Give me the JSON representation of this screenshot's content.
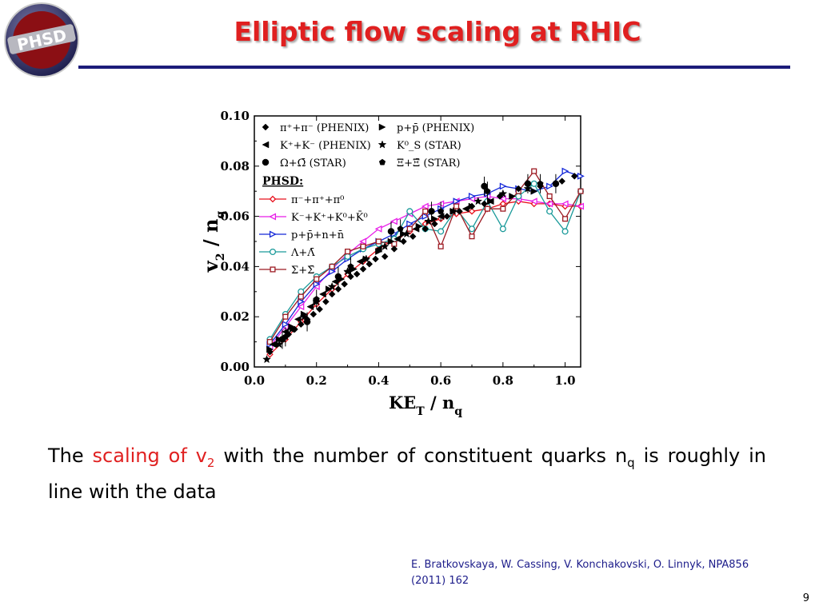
{
  "logo": {
    "text": "PHSD"
  },
  "title": "Elliptic flow scaling at RHIC",
  "body": {
    "p1": "The ",
    "highlight": "scaling of v",
    "sub2": "2",
    "p2": " with the number of constituent quarks n",
    "subq": "q",
    "p3": " is roughly in line with the data"
  },
  "reference": {
    "line1": "E. Bratkovskaya, W. Cassing, V. Konchakovski, O. Linnyk, NPA856",
    "line2": "(2011) 162"
  },
  "page_number": "9",
  "chart_data": {
    "type": "scatter",
    "xlabel": "KE_T / n_q",
    "ylabel": "v_2 / n_q",
    "xlim": [
      0.0,
      1.05
    ],
    "ylim": [
      0.0,
      0.1
    ],
    "x_ticks": [
      "0.0",
      "0.2",
      "0.4",
      "0.6",
      "0.8",
      "1.0"
    ],
    "y_ticks": [
      "0.00",
      "0.02",
      "0.04",
      "0.06",
      "0.08",
      "0.10"
    ],
    "legend_title_model": "PHSD:",
    "data_series": [
      {
        "name": "π⁺+π⁻ (PHENIX)",
        "marker": "diamond",
        "x": [
          0.05,
          0.07,
          0.09,
          0.11,
          0.13,
          0.15,
          0.17,
          0.19,
          0.21,
          0.23,
          0.25,
          0.27,
          0.29,
          0.31,
          0.33,
          0.35,
          0.37,
          0.39,
          0.42,
          0.45,
          0.48,
          0.51,
          0.55,
          0.58,
          0.62,
          0.66,
          0.7,
          0.74,
          0.79,
          0.85,
          0.92,
          0.99,
          1.03
        ],
        "y": [
          0.006,
          0.009,
          0.011,
          0.013,
          0.015,
          0.017,
          0.019,
          0.021,
          0.023,
          0.026,
          0.029,
          0.031,
          0.033,
          0.036,
          0.037,
          0.039,
          0.041,
          0.043,
          0.044,
          0.047,
          0.05,
          0.052,
          0.055,
          0.057,
          0.06,
          0.062,
          0.064,
          0.065,
          0.068,
          0.071,
          0.072,
          0.074,
          0.076
        ]
      },
      {
        "name": "K⁺+K⁻ (PHENIX)",
        "marker": "triangle-left",
        "x": [
          0.06,
          0.1,
          0.14,
          0.18,
          0.22,
          0.26,
          0.3,
          0.34,
          0.4,
          0.46,
          0.52,
          0.6,
          0.68,
          0.76
        ],
        "y": [
          0.009,
          0.014,
          0.019,
          0.024,
          0.029,
          0.034,
          0.038,
          0.042,
          0.047,
          0.051,
          0.055,
          0.06,
          0.063,
          0.066
        ]
      },
      {
        "name": "Ω+Ω̄ (STAR)",
        "marker": "circle",
        "x": [
          0.09,
          0.17,
          0.27,
          0.44,
          0.57,
          0.74,
          0.88,
          0.97
        ],
        "y": [
          0.011,
          0.018,
          0.036,
          0.054,
          0.062,
          0.072,
          0.073,
          0.073
        ]
      },
      {
        "name": "p+p̄ (PHENIX)",
        "marker": "triangle-right",
        "x": [
          0.05,
          0.08,
          0.12,
          0.16,
          0.2,
          0.24,
          0.28,
          0.32,
          0.36,
          0.4,
          0.44,
          0.48,
          0.53,
          0.58,
          0.64,
          0.7,
          0.76,
          0.83,
          0.9
        ],
        "y": [
          0.007,
          0.011,
          0.016,
          0.021,
          0.026,
          0.031,
          0.035,
          0.039,
          0.043,
          0.046,
          0.05,
          0.053,
          0.056,
          0.059,
          0.062,
          0.064,
          0.066,
          0.068,
          0.07
        ]
      },
      {
        "name": "K⁰_S (STAR)",
        "marker": "star",
        "x": [
          0.04,
          0.08,
          0.12,
          0.16,
          0.2,
          0.25,
          0.3,
          0.36,
          0.42,
          0.49,
          0.56,
          0.64,
          0.72,
          0.8,
          0.88
        ],
        "y": [
          0.003,
          0.009,
          0.015,
          0.02,
          0.026,
          0.032,
          0.038,
          0.043,
          0.048,
          0.053,
          0.058,
          0.062,
          0.066,
          0.069,
          0.071
        ]
      },
      {
        "name": "Ξ+Ξ̄ (STAR)",
        "marker": "pentagon",
        "x": [
          0.1,
          0.2,
          0.31,
          0.47,
          0.6,
          0.75,
          0.92
        ],
        "y": [
          0.012,
          0.027,
          0.04,
          0.055,
          0.062,
          0.07,
          0.073
        ]
      }
    ],
    "model_series": [
      {
        "name": "π⁻+π⁺+π⁰",
        "color": "#e8101c",
        "marker": "diamond-open",
        "x": [
          0.05,
          0.1,
          0.15,
          0.2,
          0.25,
          0.3,
          0.35,
          0.4,
          0.45,
          0.5,
          0.55,
          0.6,
          0.65,
          0.7,
          0.75,
          0.8,
          0.85,
          0.9,
          0.95,
          1.0,
          1.05
        ],
        "y": [
          0.005,
          0.011,
          0.018,
          0.025,
          0.031,
          0.037,
          0.042,
          0.047,
          0.051,
          0.054,
          0.057,
          0.059,
          0.061,
          0.062,
          0.063,
          0.065,
          0.066,
          0.065,
          0.065,
          0.064,
          0.064
        ]
      },
      {
        "name": "K⁻+K⁺+K⁰+K̄⁰",
        "color": "#e81ee8",
        "marker": "triangle-left-open",
        "x": [
          0.05,
          0.1,
          0.15,
          0.2,
          0.25,
          0.3,
          0.35,
          0.4,
          0.45,
          0.5,
          0.55,
          0.6,
          0.65,
          0.7,
          0.75,
          0.8,
          0.85,
          0.9,
          0.95,
          1.0,
          1.05
        ],
        "y": [
          0.008,
          0.016,
          0.024,
          0.032,
          0.039,
          0.045,
          0.05,
          0.055,
          0.058,
          0.061,
          0.064,
          0.065,
          0.066,
          0.067,
          0.068,
          0.067,
          0.067,
          0.066,
          0.065,
          0.065,
          0.064
        ]
      },
      {
        "name": "p+p̄+n+n̄",
        "color": "#1428d8",
        "marker": "triangle-right-open",
        "x": [
          0.05,
          0.1,
          0.15,
          0.2,
          0.25,
          0.3,
          0.35,
          0.4,
          0.45,
          0.5,
          0.55,
          0.6,
          0.65,
          0.7,
          0.75,
          0.8,
          0.85,
          0.9,
          0.95,
          1.0,
          1.05
        ],
        "y": [
          0.009,
          0.017,
          0.026,
          0.033,
          0.038,
          0.043,
          0.047,
          0.05,
          0.053,
          0.057,
          0.06,
          0.063,
          0.066,
          0.068,
          0.069,
          0.072,
          0.071,
          0.07,
          0.072,
          0.078,
          0.076
        ]
      },
      {
        "name": "Λ+Λ̄",
        "color": "#1a9a9a",
        "marker": "circle-open",
        "x": [
          0.05,
          0.1,
          0.15,
          0.2,
          0.25,
          0.3,
          0.35,
          0.4,
          0.45,
          0.5,
          0.55,
          0.6,
          0.65,
          0.7,
          0.75,
          0.8,
          0.85,
          0.9,
          0.95,
          1.0,
          1.05
        ],
        "y": [
          0.011,
          0.021,
          0.03,
          0.036,
          0.04,
          0.044,
          0.047,
          0.049,
          0.051,
          0.062,
          0.055,
          0.054,
          0.063,
          0.055,
          0.066,
          0.055,
          0.068,
          0.073,
          0.062,
          0.054,
          0.07
        ]
      },
      {
        "name": "Σ+Σ̄",
        "color": "#9c1a22",
        "marker": "square-open",
        "x": [
          0.05,
          0.1,
          0.15,
          0.2,
          0.25,
          0.3,
          0.35,
          0.4,
          0.45,
          0.5,
          0.55,
          0.6,
          0.65,
          0.7,
          0.75,
          0.8,
          0.85,
          0.9,
          0.95,
          1.0,
          1.05
        ],
        "y": [
          0.01,
          0.02,
          0.028,
          0.035,
          0.04,
          0.046,
          0.048,
          0.05,
          0.049,
          0.055,
          0.062,
          0.048,
          0.064,
          0.052,
          0.063,
          0.063,
          0.07,
          0.078,
          0.068,
          0.059,
          0.07
        ]
      }
    ]
  }
}
